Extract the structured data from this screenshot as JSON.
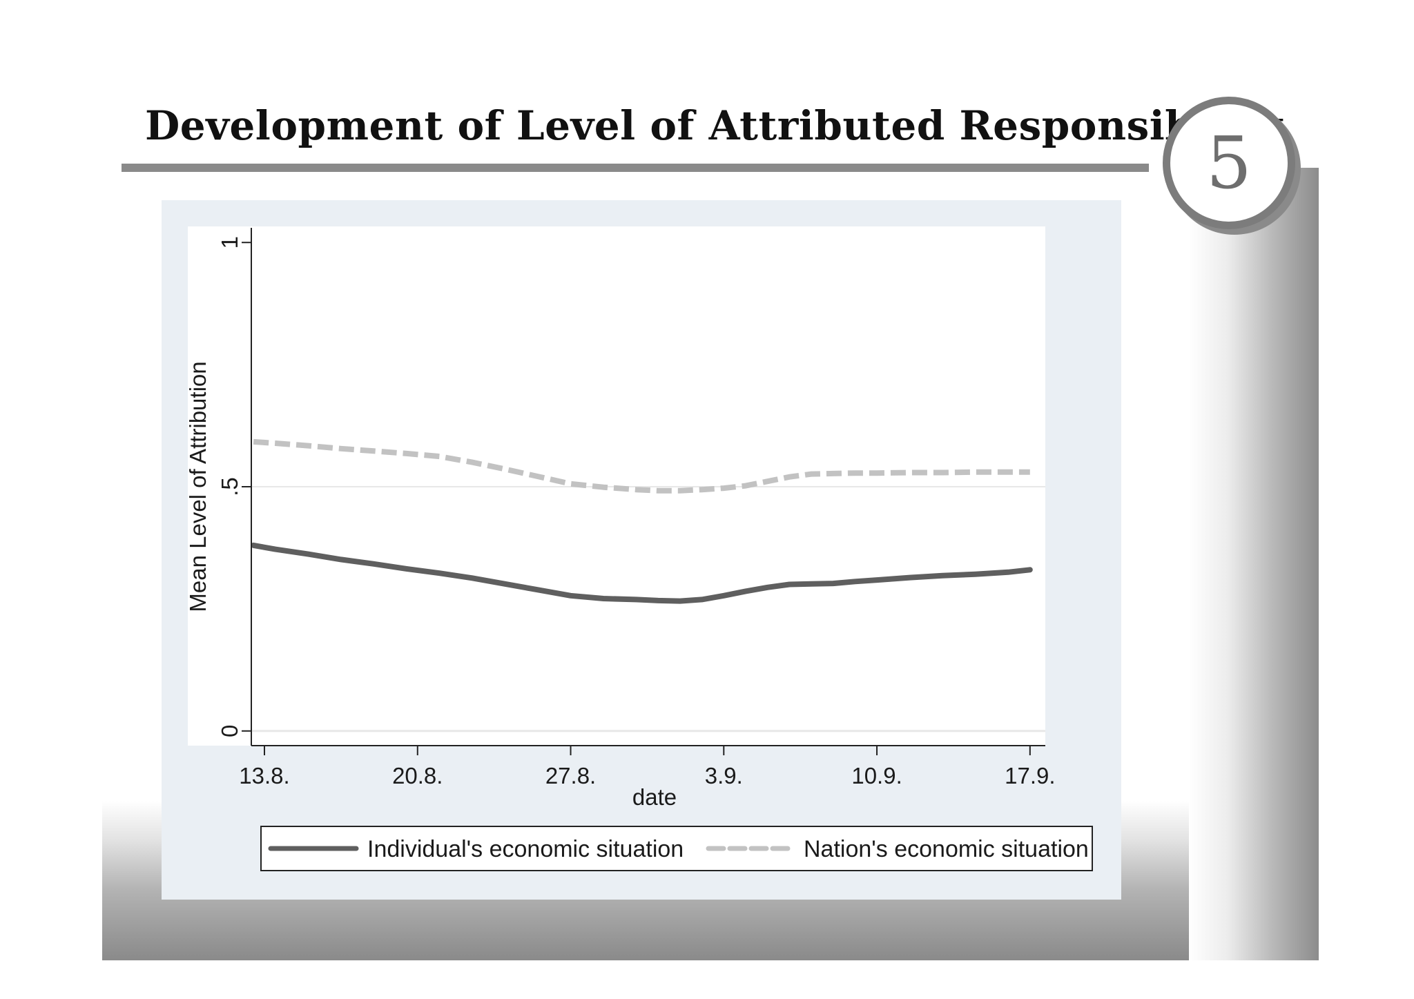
{
  "slide": {
    "title": "Development of Level of Attributed Responsibility",
    "page_number": "5"
  },
  "colors": {
    "series_individual": "#5f5f5f",
    "series_nation": "#c2c2c2",
    "gridline": "#e8e8e8",
    "axis": "#222222"
  },
  "chart_data": {
    "type": "line",
    "title": "",
    "xlabel": "date",
    "ylabel": "Mean Level of Attribution",
    "x_ticks": [
      13,
      20,
      27,
      34,
      41,
      48
    ],
    "x_tick_labels": [
      "13.8.",
      "20.8.",
      "27.8.",
      "3.9.",
      "10.9.",
      "17.9."
    ],
    "xlim": [
      12.4,
      48.7
    ],
    "y_ticks": [
      0,
      0.5,
      1
    ],
    "y_tick_labels": [
      "0",
      ".5",
      "1"
    ],
    "ylim": [
      -0.03,
      1.03
    ],
    "grid": "horizontal",
    "legend_position": "bottom",
    "x": [
      12.5,
      13.5,
      15,
      16.5,
      18,
      19.5,
      21,
      22.5,
      24,
      25.5,
      27,
      28.5,
      30,
      31,
      32,
      33,
      34,
      35,
      36,
      37,
      38,
      39,
      40,
      41,
      42.5,
      44,
      45.5,
      47,
      48
    ],
    "series": [
      {
        "name": "Individual's economic situation",
        "style": "solid",
        "values": [
          0.38,
          0.372,
          0.362,
          0.351,
          0.342,
          0.332,
          0.323,
          0.313,
          0.301,
          0.289,
          0.277,
          0.271,
          0.269,
          0.267,
          0.266,
          0.269,
          0.277,
          0.286,
          0.294,
          0.3,
          0.301,
          0.302,
          0.306,
          0.309,
          0.314,
          0.318,
          0.321,
          0.325,
          0.33
        ]
      },
      {
        "name": "Nation's economic situation",
        "style": "dashed",
        "values": [
          0.592,
          0.589,
          0.584,
          0.578,
          0.573,
          0.568,
          0.562,
          0.55,
          0.536,
          0.521,
          0.506,
          0.499,
          0.494,
          0.492,
          0.492,
          0.494,
          0.497,
          0.502,
          0.511,
          0.52,
          0.526,
          0.527,
          0.528,
          0.528,
          0.529,
          0.529,
          0.53,
          0.53,
          0.53
        ]
      }
    ]
  }
}
